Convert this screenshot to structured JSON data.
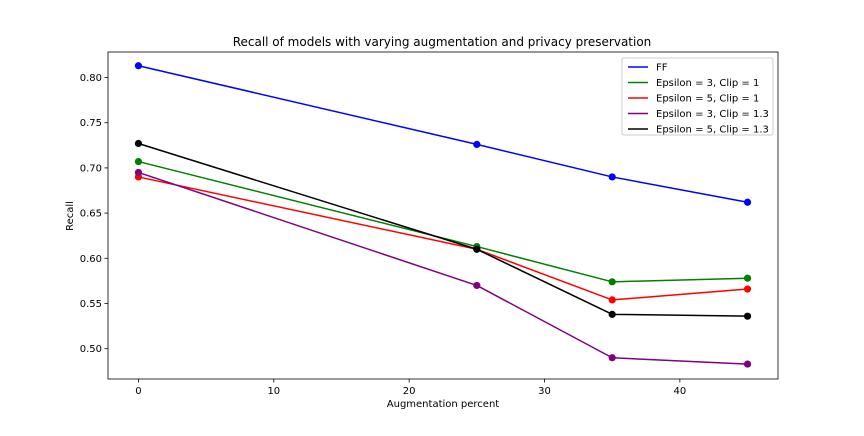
{
  "chart_data": {
    "type": "line",
    "title": "Recall of models with varying augmentation and privacy preservation",
    "xlabel": "Augmentation percent",
    "ylabel": "Recall",
    "xlim": [
      -2.25,
      47.25
    ],
    "ylim": [
      0.4665,
      0.8282
    ],
    "xticks": [
      0,
      10,
      20,
      30,
      40
    ],
    "yticks": [
      0.5,
      0.55,
      0.6,
      0.65,
      0.7,
      0.75,
      0.8
    ],
    "xtick_labels": [
      "0",
      "10",
      "20",
      "30",
      "40"
    ],
    "ytick_labels": [
      "0.50",
      "0.55",
      "0.60",
      "0.65",
      "0.70",
      "0.75",
      "0.80"
    ],
    "x": [
      0,
      25,
      35,
      45
    ],
    "grid": false,
    "legend_position": "top-right",
    "markers": true,
    "series": [
      {
        "name": "FF",
        "color": "#0000ff",
        "values": [
          0.813,
          0.726,
          0.69,
          0.662
        ]
      },
      {
        "name": "Epsilon = 3, Clip = 1",
        "color": "#008000",
        "values": [
          0.707,
          0.613,
          0.574,
          0.578
        ]
      },
      {
        "name": "Epsilon = 5, Clip = 1",
        "color": "#ff0000",
        "values": [
          0.69,
          0.61,
          0.554,
          0.566
        ]
      },
      {
        "name": "Epsilon = 3, Clip = 1.3",
        "color": "#800080",
        "values": [
          0.695,
          0.57,
          0.49,
          0.483
        ]
      },
      {
        "name": "Epsilon = 5, Clip = 1.3",
        "color": "#000000",
        "values": [
          0.727,
          0.61,
          0.538,
          0.536
        ]
      }
    ]
  }
}
